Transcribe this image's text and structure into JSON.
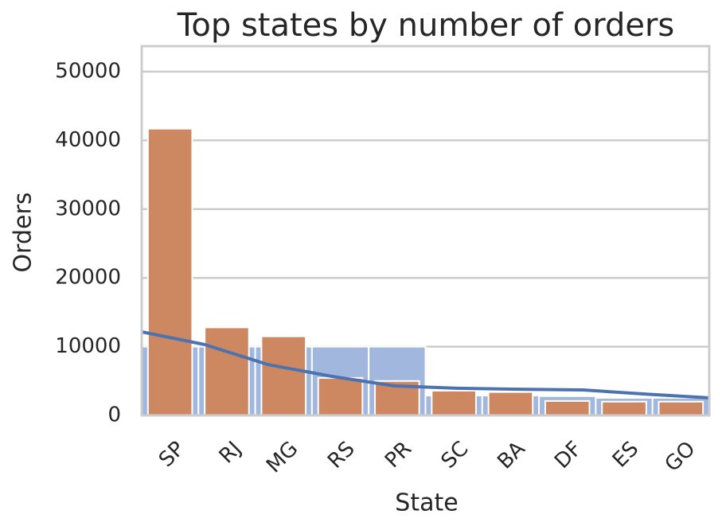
{
  "chart_data": {
    "type": "bar",
    "title": "Top states by number of orders",
    "xlabel": "State",
    "ylabel": "Orders",
    "categories": [
      "SP",
      "RJ",
      "MG",
      "RS",
      "PR",
      "SC",
      "BA",
      "DF",
      "ES",
      "GO"
    ],
    "series": [
      {
        "color": "#a1b7de",
        "values": [
          10000,
          10000,
          10000,
          10000,
          10000,
          2900,
          2900,
          2800,
          2550,
          2550
        ]
      },
      {
        "color": "#cd8861",
        "values": [
          41700,
          12800,
          11500,
          5450,
          5000,
          3600,
          3400,
          2100,
          2000,
          2000
        ]
      },
      {
        "color": "#4c72b0",
        "type": "line",
        "values": [
          12150,
          10300,
          7400,
          5700,
          4300,
          3950,
          3800,
          3700,
          3100,
          2550
        ]
      }
    ],
    "ylim": [
      0,
      53700
    ],
    "yticks": [
      0,
      10000,
      20000,
      30000,
      40000,
      50000
    ],
    "grid": true
  }
}
